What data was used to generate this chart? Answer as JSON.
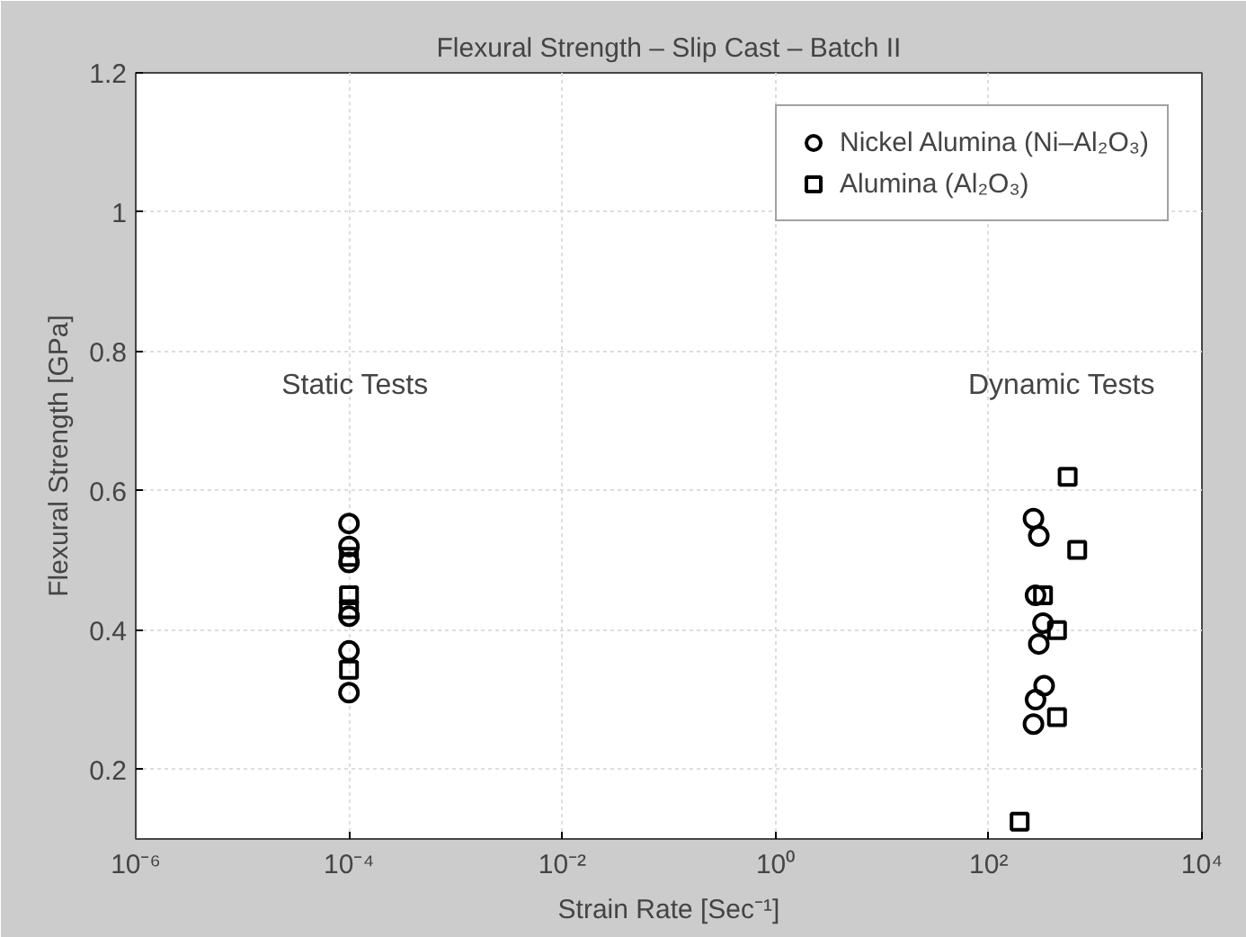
{
  "chart_data": {
    "type": "scatter",
    "title": "Flexural Strength – Slip Cast – Batch II",
    "xlabel": "Strain Rate [Sec⁻¹]",
    "ylabel": "Flexural Strength [GPa]",
    "log": "x",
    "grid": true,
    "legend": "top right",
    "xlim": [
      1e-06,
      10000
    ],
    "xticks": [
      {
        "value": 1e-06,
        "label": "10⁻⁶"
      },
      {
        "value": 0.0001,
        "label": "10⁻⁴"
      },
      {
        "value": 0.01,
        "label": "10⁻²"
      },
      {
        "value": 1,
        "label": "10⁰"
      },
      {
        "value": 100,
        "label": "10²"
      },
      {
        "value": 10000,
        "label": "10⁴"
      }
    ],
    "ylim": [
      0.1,
      1.2
    ],
    "yticks": [
      0.2,
      0.4,
      0.6,
      0.8,
      1,
      1.2
    ],
    "annotations": [
      "Static Tests",
      "Dynamic Tests"
    ],
    "series": [
      {
        "name": "Nickel Alumina (Ni–Al₂O₃)",
        "color": "#000000",
        "marker": "circle",
        "x": [
          0.0001,
          0.0001,
          0.0001,
          0.0001,
          0.0001,
          0.0001,
          263,
          295,
          275,
          323,
          295,
          331,
          275,
          263
        ],
        "values": [
          0.553,
          0.52,
          0.497,
          0.42,
          0.37,
          0.31,
          0.56,
          0.535,
          0.45,
          0.41,
          0.38,
          0.32,
          0.3,
          0.265
        ]
      },
      {
        "name": "Alumina (Al₂O₃)",
        "color": "#000000",
        "marker": "square",
        "x": [
          0.0001,
          0.0001,
          0.0001,
          0.0001,
          550,
          676,
          323,
          437,
          437,
          195
        ],
        "values": [
          0.505,
          0.45,
          0.43,
          0.343,
          0.62,
          0.515,
          0.45,
          0.4,
          0.275,
          0.125
        ]
      }
    ]
  }
}
